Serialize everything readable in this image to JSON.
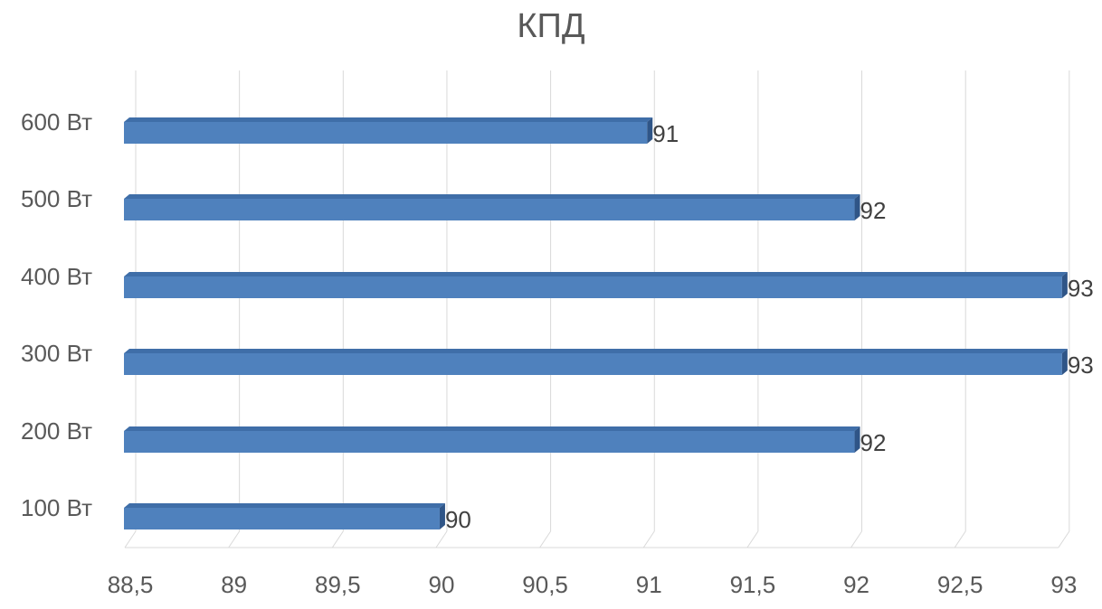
{
  "chart_data": {
    "type": "bar",
    "orientation": "horizontal",
    "title": "КПД",
    "categories": [
      "100 Вт",
      "200 Вт",
      "300 Вт",
      "400 Вт",
      "500 Вт",
      "600 Вт"
    ],
    "values": [
      90,
      92,
      93,
      93,
      92,
      91
    ],
    "data_labels": [
      "90",
      "92",
      "93",
      "93",
      "92",
      "91"
    ],
    "xlim": [
      88.5,
      93
    ],
    "x_ticks": [
      88.5,
      89,
      89.5,
      90,
      90.5,
      91,
      91.5,
      92,
      92.5,
      93
    ],
    "x_tick_labels": [
      "88,5",
      "89",
      "89,5",
      "90",
      "90,5",
      "91",
      "91,5",
      "92",
      "92,5",
      "93"
    ],
    "xlabel": "",
    "ylabel": "",
    "grid": true,
    "legend": "none",
    "bar_color": "#4f81bd"
  }
}
